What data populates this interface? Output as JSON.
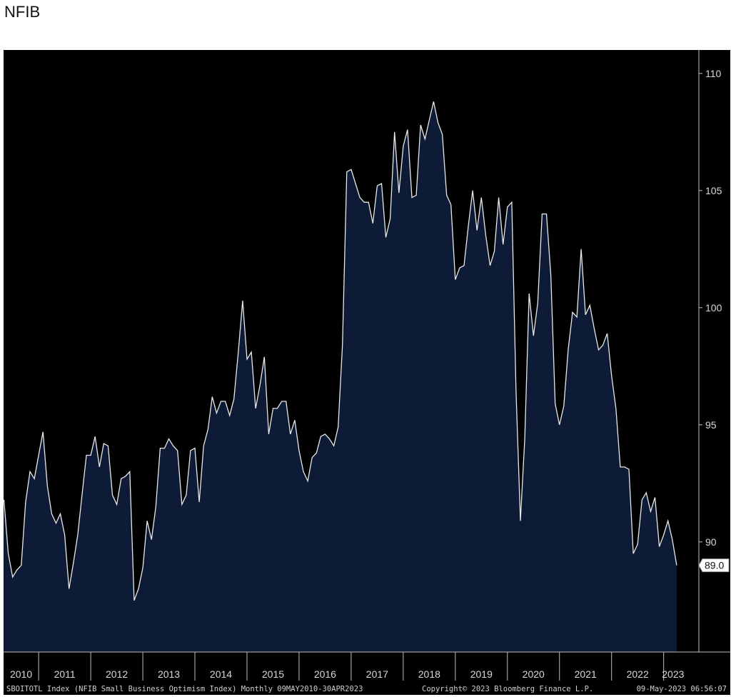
{
  "page": {
    "title": "NFIB"
  },
  "footer": {
    "left": "SBOITOTL Index (NFIB Small Business Optimism Index) Monthly 09MAY2010-30APR2023",
    "center": "Copyright© 2023 Bloomberg Finance L.P.",
    "right": "09-May-2023 06:56:07"
  },
  "colors": {
    "line": "#e8e8e8",
    "fill": "#0d1b36",
    "background": "#000000",
    "axis_text": "#d8d8d8"
  },
  "chart_data": {
    "type": "area",
    "title": "NFIB",
    "series_name": "SBOITOTL Index (NFIB Small Business Optimism Index)",
    "frequency": "Monthly",
    "date_range": "09MAY2010-30APR2023",
    "x_start": "2010-05",
    "x_end": "2023-04",
    "x_ticks": [
      "2010",
      "2011",
      "2012",
      "2013",
      "2014",
      "2015",
      "2016",
      "2017",
      "2018",
      "2019",
      "2020",
      "2021",
      "2022",
      "2023"
    ],
    "y_ticks": [
      90,
      95,
      100,
      105,
      110
    ],
    "ylim": [
      85.3,
      111
    ],
    "y_axis_position": "right",
    "last_value_label": "89.0",
    "x": [
      "2010-05",
      "2010-06",
      "2010-07",
      "2010-08",
      "2010-09",
      "2010-10",
      "2010-11",
      "2010-12",
      "2011-01",
      "2011-02",
      "2011-03",
      "2011-04",
      "2011-05",
      "2011-06",
      "2011-07",
      "2011-08",
      "2011-09",
      "2011-10",
      "2011-11",
      "2011-12",
      "2012-01",
      "2012-02",
      "2012-03",
      "2012-04",
      "2012-05",
      "2012-06",
      "2012-07",
      "2012-08",
      "2012-09",
      "2012-10",
      "2012-11",
      "2012-12",
      "2013-01",
      "2013-02",
      "2013-03",
      "2013-04",
      "2013-05",
      "2013-06",
      "2013-07",
      "2013-08",
      "2013-09",
      "2013-10",
      "2013-11",
      "2013-12",
      "2014-01",
      "2014-02",
      "2014-03",
      "2014-04",
      "2014-05",
      "2014-06",
      "2014-07",
      "2014-08",
      "2014-09",
      "2014-10",
      "2014-11",
      "2014-12",
      "2015-01",
      "2015-02",
      "2015-03",
      "2015-04",
      "2015-05",
      "2015-06",
      "2015-07",
      "2015-08",
      "2015-09",
      "2015-10",
      "2015-11",
      "2015-12",
      "2016-01",
      "2016-02",
      "2016-03",
      "2016-04",
      "2016-05",
      "2016-06",
      "2016-07",
      "2016-08",
      "2016-09",
      "2016-10",
      "2016-11",
      "2016-12",
      "2017-01",
      "2017-02",
      "2017-03",
      "2017-04",
      "2017-05",
      "2017-06",
      "2017-07",
      "2017-08",
      "2017-09",
      "2017-10",
      "2017-11",
      "2017-12",
      "2018-01",
      "2018-02",
      "2018-03",
      "2018-04",
      "2018-05",
      "2018-06",
      "2018-07",
      "2018-08",
      "2018-09",
      "2018-10",
      "2018-11",
      "2018-12",
      "2019-01",
      "2019-02",
      "2019-03",
      "2019-04",
      "2019-05",
      "2019-06",
      "2019-07",
      "2019-08",
      "2019-09",
      "2019-10",
      "2019-11",
      "2019-12",
      "2020-01",
      "2020-02",
      "2020-03",
      "2020-04",
      "2020-05",
      "2020-06",
      "2020-07",
      "2020-08",
      "2020-09",
      "2020-10",
      "2020-11",
      "2020-12",
      "2021-01",
      "2021-02",
      "2021-03",
      "2021-04",
      "2021-05",
      "2021-06",
      "2021-07",
      "2021-08",
      "2021-09",
      "2021-10",
      "2021-11",
      "2021-12",
      "2022-01",
      "2022-02",
      "2022-03",
      "2022-04",
      "2022-05",
      "2022-06",
      "2022-07",
      "2022-08",
      "2022-09",
      "2022-10",
      "2022-11",
      "2022-12",
      "2023-01",
      "2023-02",
      "2023-03",
      "2023-04"
    ],
    "values": [
      91.8,
      89.5,
      88.5,
      88.8,
      89.0,
      91.7,
      93.0,
      92.7,
      93.7,
      94.7,
      92.4,
      91.2,
      90.8,
      91.2,
      90.3,
      88.0,
      89.1,
      90.3,
      92.0,
      93.7,
      93.7,
      94.5,
      93.2,
      94.2,
      94.1,
      92.0,
      91.6,
      92.7,
      92.8,
      93.0,
      87.5,
      88.0,
      88.9,
      90.9,
      90.1,
      91.5,
      94.0,
      94.0,
      94.4,
      94.1,
      93.9,
      91.6,
      92.0,
      93.9,
      94.0,
      91.7,
      94.1,
      94.8,
      96.2,
      95.5,
      96.0,
      96.0,
      95.4,
      96.1,
      98.1,
      100.3,
      97.8,
      98.1,
      95.7,
      96.7,
      97.9,
      94.6,
      95.7,
      95.7,
      96.0,
      96.0,
      94.6,
      95.2,
      93.9,
      93.0,
      92.6,
      93.6,
      93.8,
      94.5,
      94.6,
      94.4,
      94.1,
      94.9,
      98.4,
      105.8,
      105.9,
      105.3,
      104.7,
      104.5,
      104.5,
      103.6,
      105.2,
      105.3,
      103.0,
      103.8,
      107.5,
      104.9,
      106.9,
      107.6,
      104.7,
      104.8,
      107.8,
      107.2,
      108.0,
      108.8,
      107.9,
      107.4,
      104.8,
      104.4,
      101.2,
      101.7,
      101.8,
      103.5,
      105.0,
      103.3,
      104.7,
      103.1,
      101.8,
      102.4,
      104.7,
      102.7,
      104.3,
      104.5,
      96.4,
      90.9,
      94.4,
      100.6,
      98.8,
      100.2,
      104.0,
      104.0,
      101.4,
      95.9,
      95.0,
      95.8,
      98.2,
      99.8,
      99.6,
      102.5,
      99.7,
      100.1,
      99.1,
      98.2,
      98.4,
      98.9,
      97.1,
      95.7,
      93.2,
      93.2,
      93.1,
      89.5,
      89.9,
      91.8,
      92.1,
      91.3,
      91.9,
      89.8,
      90.3,
      90.9,
      90.1,
      89.0
    ]
  }
}
